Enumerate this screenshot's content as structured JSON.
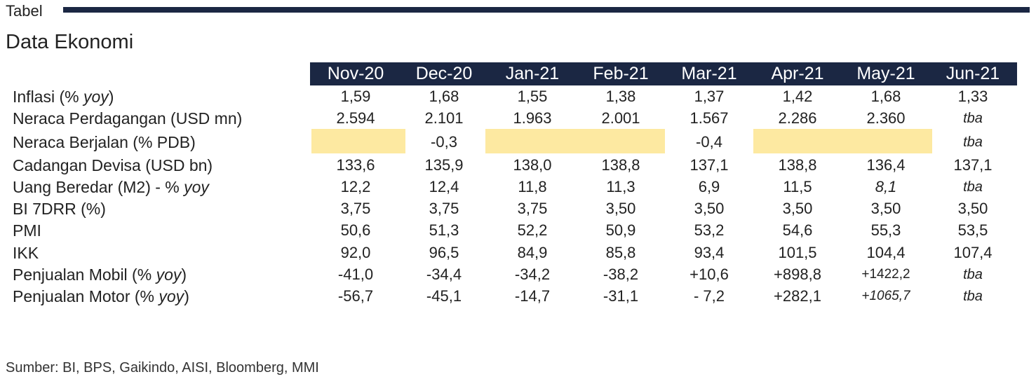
{
  "header": {
    "tag": "Tabel",
    "title": "Data Ekonomi"
  },
  "table": {
    "columns": [
      "Nov-20",
      "Dec-20",
      "Jan-21",
      "Feb-21",
      "Mar-21",
      "Apr-21",
      "May-21",
      "Jun-21"
    ],
    "rows": [
      {
        "label": "Inflasi (% ",
        "label_italic": "yoy",
        "label_end": ")",
        "values": [
          "1,59",
          "1,68",
          "1,55",
          "1,38",
          "1,37",
          "1,42",
          "1,68",
          "1,33"
        ]
      },
      {
        "label": "Neraca Perdagangan (USD mn)",
        "label_italic": "",
        "label_end": "",
        "values": [
          "2.594",
          "2.101",
          "1.963",
          "2.001",
          "1.567",
          "2.286",
          "2.360",
          "tba"
        ]
      },
      {
        "label": "Neraca Berjalan (% PDB)",
        "label_italic": "",
        "label_end": "",
        "values": [
          "",
          "-0,3",
          "",
          "",
          "-0,4",
          "",
          "",
          "tba"
        ]
      },
      {
        "label": "Cadangan Devisa (USD bn)",
        "label_italic": "",
        "label_end": "",
        "values": [
          "133,6",
          "135,9",
          "138,0",
          "138,8",
          "137,1",
          "138,8",
          "136,4",
          "137,1"
        ]
      },
      {
        "label": "Uang Beredar (M2) - % ",
        "label_italic": "yoy",
        "label_end": "",
        "values": [
          "12,2",
          "12,4",
          "11,8",
          "11,3",
          "6,9",
          "11,5",
          "8,1",
          "tba"
        ]
      },
      {
        "label": "BI 7DRR (%)",
        "label_italic": "",
        "label_end": "",
        "values": [
          "3,75",
          "3,75",
          "3,75",
          "3,50",
          "3,50",
          "3,50",
          "3,50",
          "3,50"
        ]
      },
      {
        "label": "PMI",
        "label_italic": "",
        "label_end": "",
        "values": [
          "50,6",
          "51,3",
          "52,2",
          "50,9",
          "53,2",
          "54,6",
          "55,3",
          "53,5"
        ]
      },
      {
        "label": "IKK",
        "label_italic": "",
        "label_end": "",
        "values": [
          "92,0",
          "96,5",
          "84,9",
          "85,8",
          "93,4",
          "101,5",
          "104,4",
          "107,4"
        ]
      },
      {
        "label": "Penjualan Mobil (% ",
        "label_italic": "yoy",
        "label_end": ")",
        "values": [
          "-41,0",
          "-34,4",
          "-34,2",
          "-38,2",
          "+10,6",
          "+898,8",
          "+1422,2",
          "tba"
        ]
      },
      {
        "label": "Penjualan Motor (% ",
        "label_italic": "yoy",
        "label_end": ")",
        "values": [
          "-56,7",
          "-45,1",
          "-14,7",
          "-31,1",
          "- 7,2",
          "+282,1",
          "+1065,7",
          "tba"
        ]
      }
    ],
    "highlight_color": "#fde9a1",
    "header_color": "#1b2743"
  },
  "footer": {
    "source": "Sumber: BI, BPS, Gaikindo, AISI, Bloomberg, MMI"
  }
}
